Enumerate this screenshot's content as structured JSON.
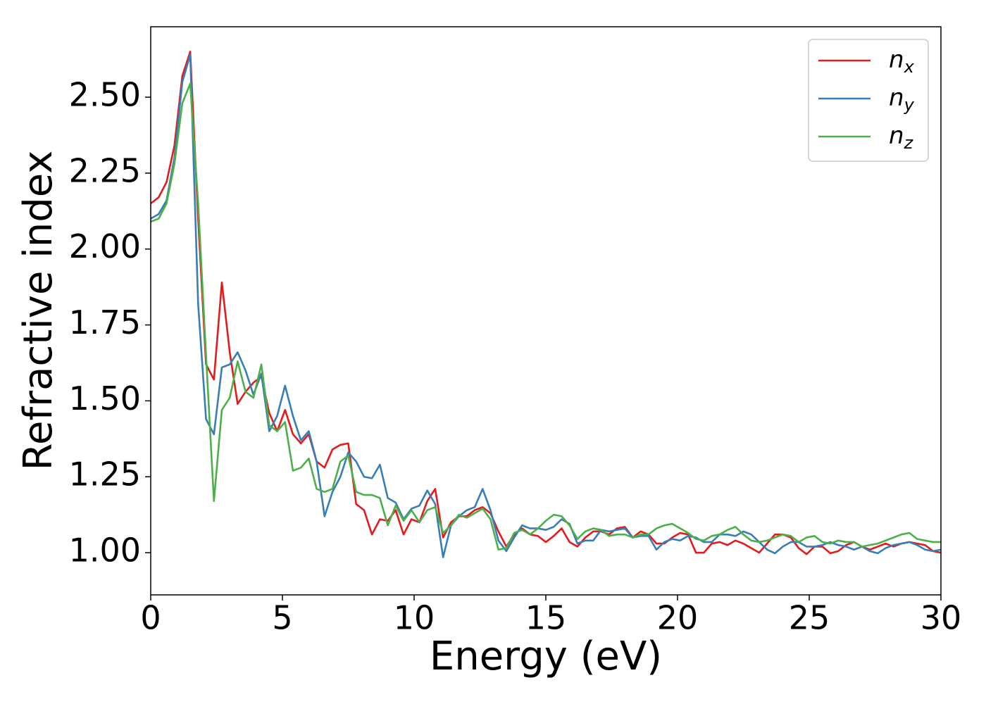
{
  "chart_data": {
    "type": "line",
    "xlabel": "Energy (eV)",
    "ylabel": "Refractive index",
    "x": [
      0,
      0.3,
      0.6,
      0.9,
      1.2,
      1.5,
      1.8,
      2.1,
      2.4,
      2.7,
      3,
      3.3,
      3.6,
      3.9,
      4.2,
      4.5,
      4.8,
      5.1,
      5.4,
      5.7,
      6,
      6.3,
      6.6,
      6.9,
      7.2,
      7.5,
      7.8,
      8.1,
      8.4,
      8.7,
      9,
      9.3,
      9.6,
      9.9,
      10.2,
      10.5,
      10.8,
      11.1,
      11.4,
      11.7,
      12,
      12.3,
      12.6,
      12.9,
      13.2,
      13.5,
      13.8,
      14.1,
      14.4,
      14.7,
      15,
      15.3,
      15.6,
      15.9,
      16.2,
      16.5,
      16.8,
      17.1,
      17.4,
      17.7,
      18,
      18.3,
      18.6,
      18.9,
      19.2,
      19.5,
      19.8,
      20.1,
      20.4,
      20.7,
      21,
      21.3,
      21.6,
      21.9,
      22.2,
      22.5,
      22.8,
      23.1,
      23.4,
      23.7,
      24,
      24.3,
      24.6,
      24.9,
      25.2,
      25.5,
      25.8,
      26.1,
      26.4,
      26.7,
      27,
      27.3,
      27.6,
      27.9,
      28.2,
      28.5,
      28.8,
      29.1,
      29.4,
      29.7,
      30
    ],
    "series": [
      {
        "name": "nx",
        "color": "#e41a1c",
        "values": [
          2.15,
          2.17,
          2.22,
          2.34,
          2.57,
          2.65,
          2.1,
          1.62,
          1.57,
          1.89,
          1.66,
          1.49,
          1.53,
          1.56,
          1.58,
          1.46,
          1.4,
          1.47,
          1.39,
          1.36,
          1.39,
          1.3,
          1.28,
          1.34,
          1.355,
          1.36,
          1.16,
          1.14,
          1.06,
          1.11,
          1.105,
          1.14,
          1.06,
          1.11,
          1.1,
          1.17,
          1.21,
          1.05,
          1.1,
          1.12,
          1.12,
          1.14,
          1.15,
          1.13,
          1.07,
          1.02,
          1.06,
          1.08,
          1.06,
          1.055,
          1.035,
          1.055,
          1.08,
          1.035,
          1.02,
          1.05,
          1.07,
          1.07,
          1.06,
          1.08,
          1.085,
          1.05,
          1.07,
          1.06,
          1.03,
          1.03,
          1.05,
          1.065,
          1.06,
          1.0,
          1.0,
          1.03,
          1.035,
          1.025,
          1.04,
          1.03,
          1.015,
          1.0,
          1.03,
          1.06,
          1.06,
          1.05,
          1.015,
          0.995,
          1.02,
          1.02,
          0.998,
          1.005,
          1.025,
          1.035,
          1.02,
          1.01,
          1.02,
          1.03,
          1.02,
          1.03,
          1.035,
          1.03,
          1.025,
          1.005,
          1.0
        ]
      },
      {
        "name": "ny",
        "color": "#377eb8",
        "values": [
          2.1,
          2.115,
          2.16,
          2.3,
          2.55,
          2.64,
          1.82,
          1.44,
          1.39,
          1.61,
          1.62,
          1.66,
          1.6,
          1.52,
          1.59,
          1.4,
          1.45,
          1.55,
          1.45,
          1.37,
          1.4,
          1.3,
          1.12,
          1.2,
          1.25,
          1.33,
          1.3,
          1.25,
          1.245,
          1.29,
          1.18,
          1.165,
          1.11,
          1.145,
          1.155,
          1.205,
          1.16,
          0.985,
          1.09,
          1.12,
          1.14,
          1.15,
          1.21,
          1.14,
          1.04,
          1.005,
          1.05,
          1.09,
          1.08,
          1.08,
          1.075,
          1.085,
          1.11,
          1.095,
          1.03,
          1.04,
          1.04,
          1.075,
          1.07,
          1.075,
          1.08,
          1.05,
          1.055,
          1.055,
          1.01,
          1.035,
          1.045,
          1.04,
          1.055,
          1.05,
          1.035,
          1.035,
          1.06,
          1.06,
          1.055,
          1.07,
          1.06,
          1.035,
          1.01,
          0.998,
          1.02,
          1.035,
          1.035,
          1.02,
          1.02,
          1.025,
          1.035,
          1.025,
          1.02,
          1.01,
          1.02,
          1.005,
          0.998,
          1.015,
          1.025,
          1.03,
          1.035,
          1.025,
          1.01,
          1.005,
          1.01
        ]
      },
      {
        "name": "nz",
        "color": "#4daf4a",
        "values": [
          2.09,
          2.1,
          2.15,
          2.28,
          2.48,
          2.545,
          2.15,
          1.65,
          1.17,
          1.47,
          1.51,
          1.63,
          1.53,
          1.51,
          1.62,
          1.42,
          1.4,
          1.43,
          1.27,
          1.28,
          1.31,
          1.21,
          1.2,
          1.21,
          1.3,
          1.32,
          1.2,
          1.19,
          1.19,
          1.18,
          1.09,
          1.155,
          1.105,
          1.14,
          1.1,
          1.14,
          1.15,
          1.065,
          1.09,
          1.125,
          1.115,
          1.13,
          1.145,
          1.11,
          1.01,
          1.015,
          1.065,
          1.075,
          1.06,
          1.08,
          1.105,
          1.125,
          1.12,
          1.09,
          1.045,
          1.07,
          1.08,
          1.075,
          1.055,
          1.06,
          1.06,
          1.05,
          1.06,
          1.06,
          1.08,
          1.09,
          1.095,
          1.08,
          1.065,
          1.045,
          1.04,
          1.055,
          1.06,
          1.075,
          1.085,
          1.06,
          1.04,
          1.035,
          1.04,
          1.05,
          1.06,
          1.055,
          1.035,
          1.05,
          1.055,
          1.035,
          1.03,
          1.04,
          1.035,
          1.035,
          1.02,
          1.025,
          1.03,
          1.04,
          1.05,
          1.06,
          1.065,
          1.045,
          1.04,
          1.035,
          1.035
        ]
      }
    ],
    "xlim": [
      0,
      30
    ],
    "xticks": [
      0,
      5,
      10,
      15,
      20,
      25,
      30
    ],
    "ylim": [
      0.861,
      2.732
    ],
    "yticks": [
      {
        "value": 1,
        "label": "1.00"
      },
      1.25,
      {
        "value": 1.5,
        "label": "1.50"
      },
      1.75,
      {
        "value": 2,
        "label": "2.00"
      },
      2.25,
      {
        "value": 2.5,
        "label": "2.50"
      }
    ],
    "grid": false,
    "legend": "upper right"
  }
}
